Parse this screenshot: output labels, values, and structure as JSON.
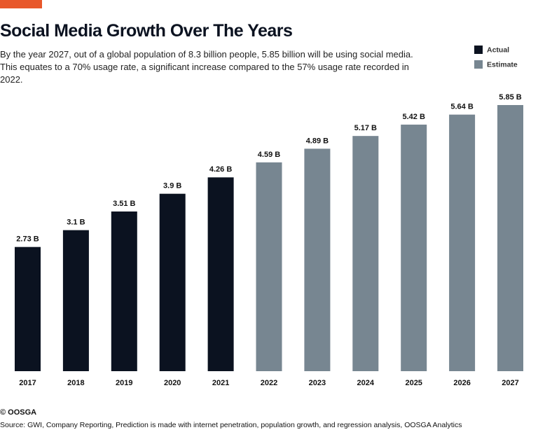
{
  "chart_data": {
    "type": "bar",
    "title": "Social Media Growth Over The Years",
    "subtitle": "By the year 2027, out of a global population of 8.3 billion people, 5.85 billion will be using social media. This equates to a 70% usage rate, a significant increase compared to the 57% usage rate recorded in 2022.",
    "categories": [
      "2017",
      "2018",
      "2019",
      "2020",
      "2021",
      "2022",
      "2023",
      "2024",
      "2025",
      "2026",
      "2027"
    ],
    "series": [
      {
        "name": "Actual",
        "color": "#0b1220",
        "values": [
          2.73,
          3.1,
          3.51,
          3.9,
          4.26,
          null,
          null,
          null,
          null,
          null,
          null
        ],
        "value_labels": [
          "2.73 B",
          "3.1 B",
          "3.51 B",
          "3.9 B",
          "4.26 B",
          null,
          null,
          null,
          null,
          null,
          null
        ]
      },
      {
        "name": "Estimate",
        "color": "#778691",
        "values": [
          null,
          null,
          null,
          null,
          null,
          4.59,
          4.89,
          5.17,
          5.42,
          5.64,
          5.85
        ],
        "value_labels": [
          null,
          null,
          null,
          null,
          null,
          "4.59 B",
          "4.89 B",
          "5.17 B",
          "5.42 B",
          "5.64 B",
          "5.85 B"
        ]
      }
    ],
    "copyright": "© OOSGA",
    "source": "Source: GWI, Company Reporting, Prediction is made with internet penetration, population growth, and regression analysis, OOSGA Analytics"
  }
}
